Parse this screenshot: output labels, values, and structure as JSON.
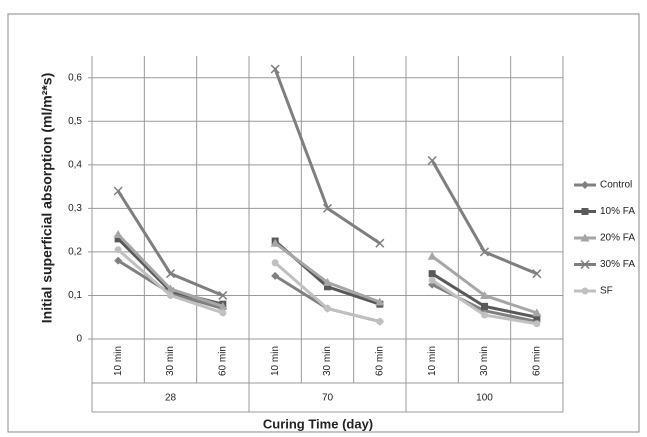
{
  "chart_data": {
    "type": "line",
    "y_label": "Initial superficial absorption (ml/m²*s)",
    "x_label": "Curing Time (day)",
    "groups": [
      "28",
      "70",
      "100"
    ],
    "categories": [
      "10 min",
      "30 min",
      "60 min",
      "10 min",
      "30 min",
      "60 min",
      "10 min",
      "30 min",
      "60 min"
    ],
    "ylim": [
      0,
      0.65
    ],
    "yticks": [
      0,
      {
        "value": 0.1,
        "label": "0,1"
      },
      {
        "value": 0.2,
        "label": "0,2"
      },
      {
        "value": 0.3,
        "label": "0,3"
      },
      {
        "value": 0.4,
        "label": "0,4"
      },
      {
        "value": 0.5,
        "label": "0,5"
      },
      {
        "value": 0.6,
        "label": "0,6"
      }
    ],
    "grid": true,
    "legend": "right",
    "series": [
      {
        "name": "Control",
        "color": "#808080",
        "marker": "diamond",
        "values": [
          0.18,
          0.105,
          0.07,
          0.145,
          0.07,
          0.04,
          0.125,
          0.065,
          0.04
        ]
      },
      {
        "name": "10% FA",
        "color": "#595959",
        "marker": "square",
        "values": [
          0.23,
          0.11,
          0.08,
          0.225,
          0.12,
          0.08,
          0.15,
          0.075,
          0.05
        ]
      },
      {
        "name": "20% FA",
        "color": "#a6a6a6",
        "marker": "triangle",
        "values": [
          0.24,
          0.115,
          0.075,
          0.22,
          0.13,
          0.085,
          0.19,
          0.1,
          0.06
        ]
      },
      {
        "name": "30% FA",
        "color": "#7f7f7f",
        "marker": "cross",
        "values": [
          0.34,
          0.15,
          0.1,
          0.62,
          0.3,
          0.22,
          0.41,
          0.2,
          0.15
        ]
      },
      {
        "name": "SF",
        "color": "#c0c0c0",
        "marker": "circle",
        "values": [
          0.205,
          0.1,
          0.06,
          0.175,
          0.07,
          0.04,
          0.135,
          0.055,
          0.035
        ]
      }
    ]
  }
}
